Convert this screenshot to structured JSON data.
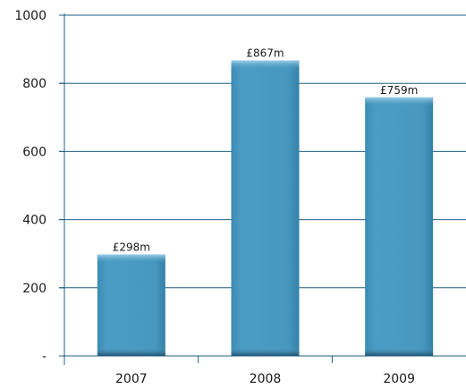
{
  "chart_data": {
    "type": "bar",
    "categories": [
      "2007",
      "2008",
      "2009"
    ],
    "values": [
      298,
      867,
      759
    ],
    "data_labels": [
      "£298m",
      "£867m",
      "£759m"
    ],
    "ylim": [
      0,
      1000
    ],
    "y_ticks": [
      {
        "value": 0,
        "label": "-"
      },
      {
        "value": 200,
        "label": "200"
      },
      {
        "value": 400,
        "label": "400"
      },
      {
        "value": 600,
        "label": "600"
      },
      {
        "value": 800,
        "label": "800"
      },
      {
        "value": 1000,
        "label": "1000"
      }
    ],
    "grid": true,
    "colors": {
      "bar": "#4797bf",
      "bar_dark": "#1d5570",
      "axis": "#1f5f86"
    }
  }
}
